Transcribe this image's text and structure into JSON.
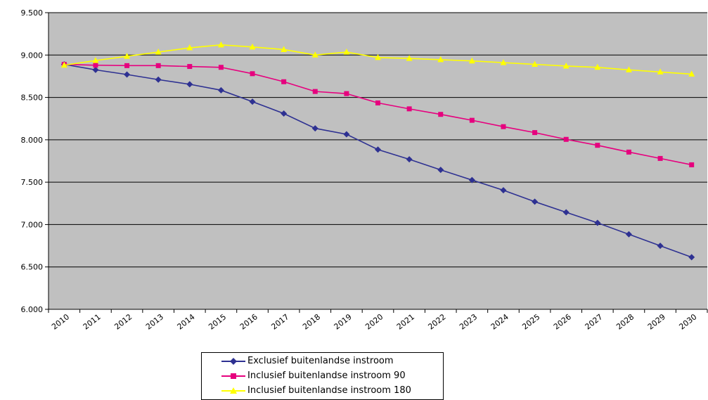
{
  "chart_data": {
    "type": "line",
    "title": "",
    "xlabel": "",
    "ylabel": "",
    "x": [
      "2010",
      "2011",
      "2012",
      "2013",
      "2014",
      "2015",
      "2016",
      "2017",
      "2018",
      "2019",
      "2020",
      "2021",
      "2022",
      "2023",
      "2024",
      "2025",
      "2026",
      "2027",
      "2028",
      "2029",
      "2030"
    ],
    "ylim": [
      6000,
      9500
    ],
    "yticks": [
      6000,
      6500,
      7000,
      7500,
      8000,
      8500,
      9000,
      9500
    ],
    "ytick_labels": [
      "6.000",
      "6.500",
      "7.000",
      "7.500",
      "8.000",
      "8.500",
      "9.000",
      "9.500"
    ],
    "grid": "horizontal",
    "plot_background": "#c0c0c0",
    "legend_position": "bottom",
    "series": [
      {
        "name": "Exclusief buitenlandse instroom",
        "color": "#2e3192",
        "marker": "diamond",
        "values": [
          8890,
          8825,
          8770,
          8710,
          8655,
          8585,
          8450,
          8310,
          8135,
          8065,
          7885,
          7770,
          7645,
          7525,
          7405,
          7270,
          7145,
          7020,
          6885,
          6750,
          6615
        ]
      },
      {
        "name": "Inclusief buitenlandse instroom 90",
        "color": "#e6007e",
        "marker": "square",
        "values": [
          8890,
          8880,
          8875,
          8875,
          8865,
          8855,
          8780,
          8685,
          8570,
          8545,
          8435,
          8365,
          8300,
          8230,
          8155,
          8085,
          8005,
          7935,
          7855,
          7780,
          7705
        ]
      },
      {
        "name": "Inclusief buitenlandse instroom 180",
        "color": "#ffff00",
        "marker": "triangle",
        "values": [
          8880,
          8935,
          8985,
          9035,
          9085,
          9120,
          9095,
          9065,
          9000,
          9035,
          8970,
          8960,
          8945,
          8930,
          8910,
          8890,
          8870,
          8855,
          8825,
          8800,
          8775
        ]
      }
    ]
  }
}
